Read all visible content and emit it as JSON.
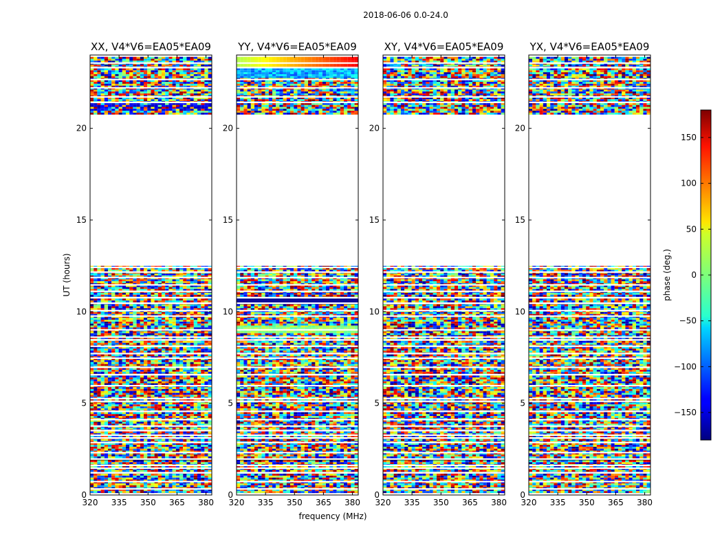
{
  "chart_data": {
    "type": "heatmap",
    "suptitle": "2018-06-06 0.0-24.0",
    "xlabel": "frequency (MHz)",
    "ylabel": "UT (hours)",
    "xlim": [
      320,
      383
    ],
    "ylim": [
      0,
      24
    ],
    "xticks": [
      320,
      335,
      350,
      365,
      380
    ],
    "yticks": [
      0,
      5,
      10,
      15,
      20
    ],
    "colorbar": {
      "label": "phase (deg.)",
      "range": [
        -180,
        180
      ],
      "ticks": [
        150,
        100,
        50,
        0,
        -50,
        -100,
        -150
      ],
      "tick_labels": [
        "150",
        "100",
        "50",
        "0",
        "−50",
        "−100",
        "−150"
      ],
      "colormap": "jet"
    },
    "data_time_ranges_hours": [
      [
        0.0,
        12.5
      ],
      [
        20.8,
        23.9
      ]
    ],
    "gap_hours": [
      [
        12.5,
        20.8
      ]
    ],
    "panels": [
      {
        "title": "XX, V4*V6=EA05*EA09",
        "pol": "XX"
      },
      {
        "title": "YY, V4*V6=EA05*EA09",
        "pol": "YY"
      },
      {
        "title": "XY, V4*V6=EA05*EA09",
        "pol": "XY"
      },
      {
        "title": "YX, V4*V6=EA05*EA09",
        "pol": "YX"
      }
    ]
  }
}
